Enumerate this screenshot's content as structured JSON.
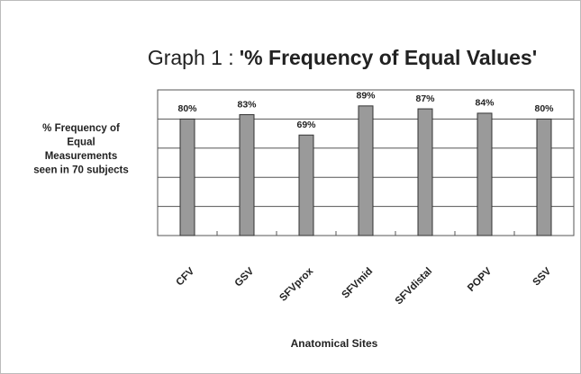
{
  "chart_data": {
    "type": "bar",
    "title_prefix": "Graph 1 :",
    "title": "'% Frequency of Equal Values'",
    "y_label": [
      "% Frequency of",
      "Equal",
      "Measurements",
      "seen in 70 subjects"
    ],
    "x_label": "Anatomical Sites",
    "categories": [
      "CFV",
      "GSV",
      "SFVprox",
      "SFVmid",
      "SFVdistal",
      "POPV",
      "SSV"
    ],
    "values": [
      80,
      83,
      69,
      89,
      87,
      84,
      80
    ],
    "value_labels": [
      "80%",
      "83%",
      "69%",
      "89%",
      "87%",
      "84%",
      "80%"
    ],
    "color": "#9a9a9a",
    "ylim": [
      0,
      100
    ],
    "yticks": [
      0,
      20,
      40,
      60,
      80,
      100
    ],
    "grid": true
  }
}
